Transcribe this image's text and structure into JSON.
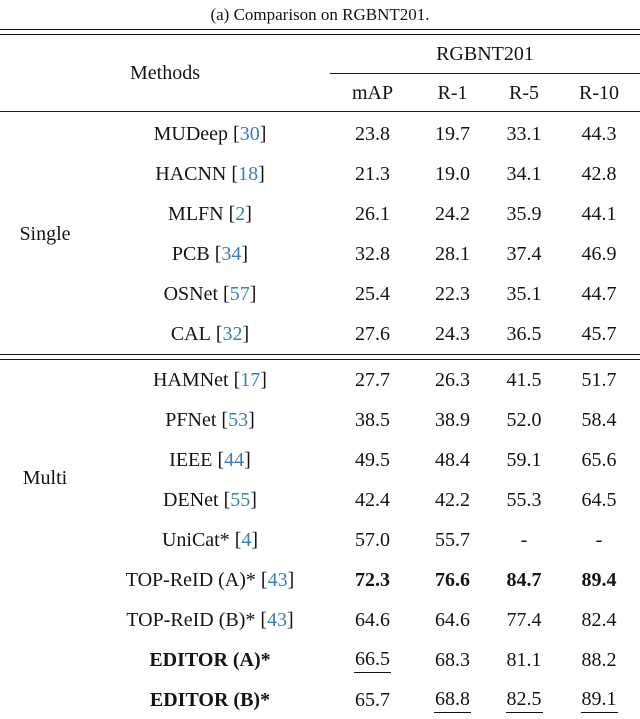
{
  "caption": "(a) Comparison on RGBNT201.",
  "colors": {
    "citation_blue": "#3a7dbd",
    "text": "#141414",
    "rule": "#1a1a1a"
  },
  "table": {
    "methods_label": "Methods",
    "dataset_label": "RGBNT201",
    "columns": [
      "mAP",
      "R-1",
      "R-5",
      "R-10"
    ],
    "groups": [
      {
        "label": "Single",
        "rows": [
          {
            "method": "MUDeep",
            "cite": "30",
            "cells": [
              {
                "v": "23.8"
              },
              {
                "v": "19.7"
              },
              {
                "v": "33.1"
              },
              {
                "v": "44.3"
              }
            ]
          },
          {
            "method": "HACNN",
            "cite": "18",
            "cells": [
              {
                "v": "21.3"
              },
              {
                "v": "19.0"
              },
              {
                "v": "34.1"
              },
              {
                "v": "42.8"
              }
            ]
          },
          {
            "method": "MLFN",
            "cite": "2",
            "cells": [
              {
                "v": "26.1"
              },
              {
                "v": "24.2"
              },
              {
                "v": "35.9"
              },
              {
                "v": "44.1"
              }
            ]
          },
          {
            "method": "PCB",
            "cite": "34",
            "cells": [
              {
                "v": "32.8"
              },
              {
                "v": "28.1"
              },
              {
                "v": "37.4"
              },
              {
                "v": "46.9"
              }
            ]
          },
          {
            "method": "OSNet",
            "cite": "57",
            "cells": [
              {
                "v": "25.4"
              },
              {
                "v": "22.3"
              },
              {
                "v": "35.1"
              },
              {
                "v": "44.7"
              }
            ]
          },
          {
            "method": "CAL",
            "cite": "32",
            "cells": [
              {
                "v": "27.6"
              },
              {
                "v": "24.3"
              },
              {
                "v": "36.5"
              },
              {
                "v": "45.7"
              }
            ]
          }
        ]
      },
      {
        "label": "Multi",
        "rows": [
          {
            "method": "HAMNet",
            "cite": "17",
            "cells": [
              {
                "v": "27.7"
              },
              {
                "v": "26.3"
              },
              {
                "v": "41.5"
              },
              {
                "v": "51.7"
              }
            ]
          },
          {
            "method": "PFNet",
            "cite": "53",
            "cells": [
              {
                "v": "38.5"
              },
              {
                "v": "38.9"
              },
              {
                "v": "52.0"
              },
              {
                "v": "58.4"
              }
            ]
          },
          {
            "method": "IEEE",
            "cite": "44",
            "cells": [
              {
                "v": "49.5"
              },
              {
                "v": "48.4"
              },
              {
                "v": "59.1"
              },
              {
                "v": "65.6"
              }
            ]
          },
          {
            "method": "DENet",
            "cite": "55",
            "cells": [
              {
                "v": "42.4"
              },
              {
                "v": "42.2"
              },
              {
                "v": "55.3"
              },
              {
                "v": "64.5"
              }
            ]
          },
          {
            "method": "UniCat*",
            "cite": "4",
            "cells": [
              {
                "v": "57.0"
              },
              {
                "v": "55.7"
              },
              {
                "v": "-"
              },
              {
                "v": "-"
              }
            ]
          },
          {
            "method": "TOP-ReID (A)*",
            "cite": "43",
            "cells": [
              {
                "v": "72.3",
                "b": true
              },
              {
                "v": "76.6",
                "b": true
              },
              {
                "v": "84.7",
                "b": true
              },
              {
                "v": "89.4",
                "b": true
              }
            ]
          },
          {
            "method": "TOP-ReID (B)*",
            "cite": "43",
            "cells": [
              {
                "v": "64.6"
              },
              {
                "v": "64.6"
              },
              {
                "v": "77.4"
              },
              {
                "v": "82.4"
              }
            ]
          },
          {
            "method": "EDITOR (A)*",
            "method_bold": true,
            "cells": [
              {
                "v": "66.5",
                "u": true
              },
              {
                "v": "68.3"
              },
              {
                "v": "81.1"
              },
              {
                "v": "88.2"
              }
            ]
          },
          {
            "method": "EDITOR (B)*",
            "method_bold": true,
            "cells": [
              {
                "v": "65.7"
              },
              {
                "v": "68.8",
                "u": true
              },
              {
                "v": "82.5",
                "u": true
              },
              {
                "v": "89.1",
                "u": true
              }
            ]
          }
        ]
      }
    ]
  }
}
